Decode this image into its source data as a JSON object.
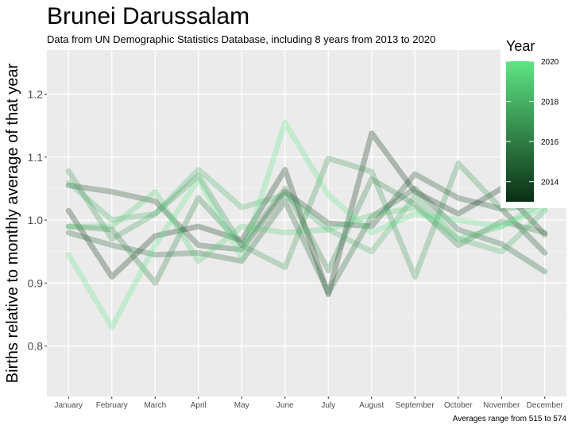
{
  "chart_data": {
    "type": "line",
    "title": "Brunei Darussalam",
    "subtitle": "Data from UN Demographic Statistics Database, including 8 years from 2013 to 2020",
    "xlabel": "",
    "ylabel": "Births relative to monthly average of that year",
    "caption": "Averages range from 515 to 574",
    "categories": [
      "January",
      "February",
      "March",
      "April",
      "May",
      "June",
      "July",
      "August",
      "September",
      "October",
      "November",
      "December"
    ],
    "ylim": [
      0.72,
      1.27
    ],
    "yticks": [
      0.8,
      0.9,
      1.0,
      1.1,
      1.2
    ],
    "ytick_labels": [
      "0.8",
      "0.9",
      "1.0",
      "1.1",
      "1.2"
    ],
    "grid": true,
    "legend": {
      "title": "Year",
      "position": "right",
      "ticks": [
        2014,
        2016,
        2018,
        2020
      ],
      "range": [
        2013,
        2020
      ],
      "color_low": "#0a2e14",
      "color_high": "#5ee584"
    },
    "series": [
      {
        "year": 2013,
        "values": [
          1.015,
          0.91,
          0.975,
          0.99,
          0.968,
          1.08,
          0.882,
          1.138,
          1.045,
          1.01,
          1.05,
          0.977
        ]
      },
      {
        "year": 2014,
        "values": [
          1.055,
          1.045,
          1.03,
          0.96,
          0.953,
          1.045,
          0.995,
          0.99,
          1.073,
          1.035,
          1.018,
          0.948
        ]
      },
      {
        "year": 2015,
        "values": [
          0.98,
          0.96,
          0.945,
          0.948,
          0.935,
          1.03,
          0.885,
          1.005,
          1.05,
          0.985,
          0.962,
          0.918
        ]
      },
      {
        "year": 2016,
        "values": [
          0.99,
          0.985,
          0.9,
          1.035,
          0.96,
          1.05,
          0.92,
          1.065,
          1.025,
          0.96,
          0.998,
          0.98
        ]
      },
      {
        "year": 2017,
        "values": [
          1.078,
          0.97,
          1.01,
          1.07,
          0.96,
          0.925,
          1.098,
          1.077,
          0.91,
          1.09,
          1.018,
          1.025
        ]
      },
      {
        "year": 2018,
        "values": [
          1.06,
          1.0,
          1.01,
          1.08,
          1.02,
          1.04,
          0.985,
          0.95,
          1.038,
          0.97,
          0.95,
          1.015
        ]
      },
      {
        "year": 2019,
        "values": [
          0.99,
          0.99,
          1.045,
          0.935,
          0.99,
          0.98,
          0.985,
          1.008,
          1.02,
          0.97,
          0.99,
          1.03
        ]
      },
      {
        "year": 2020,
        "values": [
          0.945,
          0.83,
          0.96,
          1.065,
          0.94,
          1.155,
          1.04,
          0.98,
          1.01,
          1.0,
          0.99,
          1.02
        ]
      }
    ]
  }
}
